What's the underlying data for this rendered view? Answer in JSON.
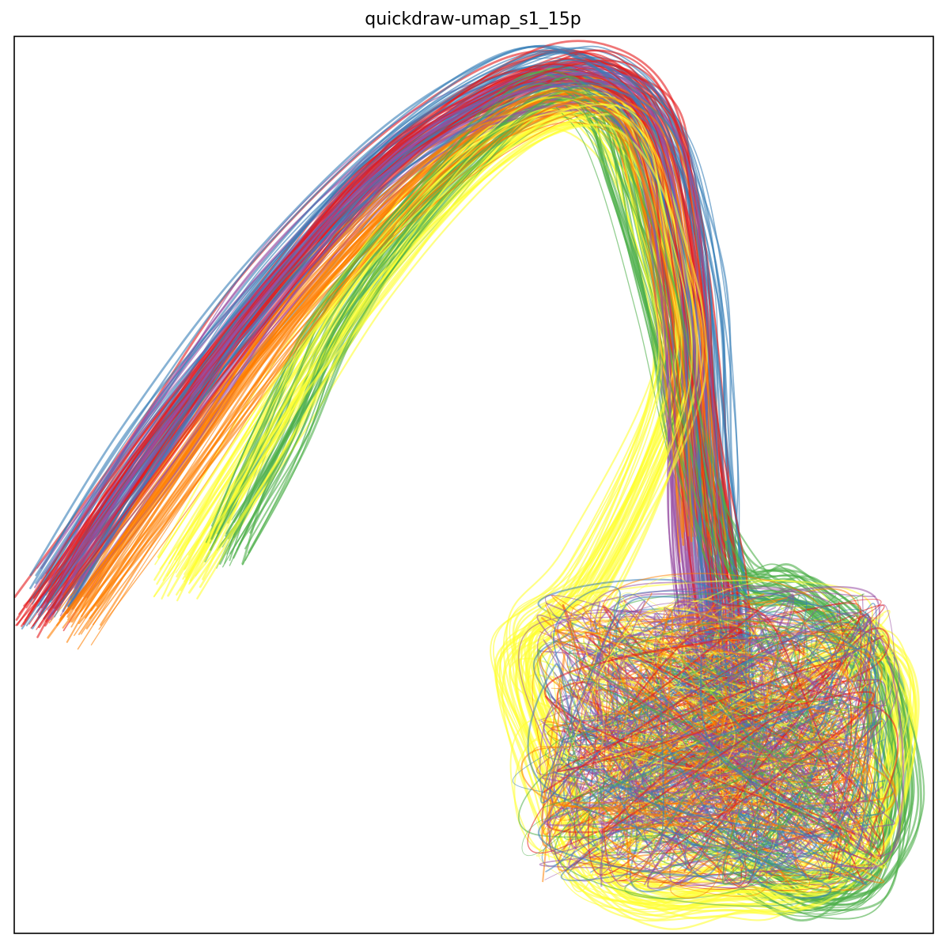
{
  "chart_data": {
    "type": "line",
    "title": "quickdraw-umap_s1_15p",
    "xlabel": "",
    "ylabel": "",
    "axes_visible": false,
    "ticks": false,
    "grid": false,
    "legend": "none",
    "palette": [
      "#e41a1c",
      "#377eb8",
      "#4daf4a",
      "#984ea3",
      "#ff7f00",
      "#ffff33"
    ],
    "xlim": [
      0,
      1
    ],
    "ylim": [
      0,
      1
    ],
    "series": [
      {
        "color": "#e41a1c",
        "x": [
          0.03,
          0.14,
          0.27,
          0.41,
          0.55,
          0.64,
          0.7,
          0.73,
          0.75,
          0.77,
          0.78
        ],
        "y": [
          0.36,
          0.52,
          0.7,
          0.86,
          0.95,
          0.96,
          0.9,
          0.75,
          0.55,
          0.38,
          0.22
        ]
      },
      {
        "color": "#377eb8",
        "x": [
          0.04,
          0.15,
          0.28,
          0.42,
          0.56,
          0.65,
          0.71,
          0.745,
          0.76,
          0.775,
          0.785
        ],
        "y": [
          0.37,
          0.54,
          0.72,
          0.87,
          0.955,
          0.95,
          0.88,
          0.72,
          0.52,
          0.35,
          0.2
        ]
      },
      {
        "color": "#4daf4a",
        "x": [
          0.23,
          0.29,
          0.35,
          0.45,
          0.57,
          0.63,
          0.66,
          0.7,
          0.74,
          0.79,
          0.85,
          0.93,
          0.96,
          0.93,
          0.86,
          0.8
        ],
        "y": [
          0.43,
          0.55,
          0.68,
          0.82,
          0.93,
          0.92,
          0.85,
          0.7,
          0.52,
          0.39,
          0.38,
          0.3,
          0.15,
          0.06,
          0.04,
          0.07
        ]
      },
      {
        "color": "#984ea3",
        "x": [
          0.05,
          0.16,
          0.3,
          0.44,
          0.57,
          0.66,
          0.71,
          0.73,
          0.74,
          0.76
        ],
        "y": [
          0.38,
          0.55,
          0.74,
          0.88,
          0.94,
          0.93,
          0.85,
          0.66,
          0.45,
          0.26
        ]
      },
      {
        "color": "#ff7f00",
        "x": [
          0.07,
          0.18,
          0.31,
          0.45,
          0.58,
          0.66,
          0.7,
          0.73,
          0.75
        ],
        "y": [
          0.35,
          0.51,
          0.69,
          0.84,
          0.925,
          0.92,
          0.84,
          0.65,
          0.44
        ]
      },
      {
        "color": "#ffff33",
        "x": [
          0.18,
          0.27,
          0.38,
          0.5,
          0.6,
          0.66,
          0.7,
          0.72,
          0.63,
          0.55,
          0.58,
          0.63,
          0.7,
          0.78,
          0.86,
          0.93,
          0.96,
          0.93,
          0.86
        ],
        "y": [
          0.4,
          0.55,
          0.72,
          0.86,
          0.92,
          0.9,
          0.8,
          0.62,
          0.4,
          0.32,
          0.2,
          0.08,
          0.04,
          0.05,
          0.05,
          0.12,
          0.25,
          0.32,
          0.3
        ]
      }
    ]
  }
}
